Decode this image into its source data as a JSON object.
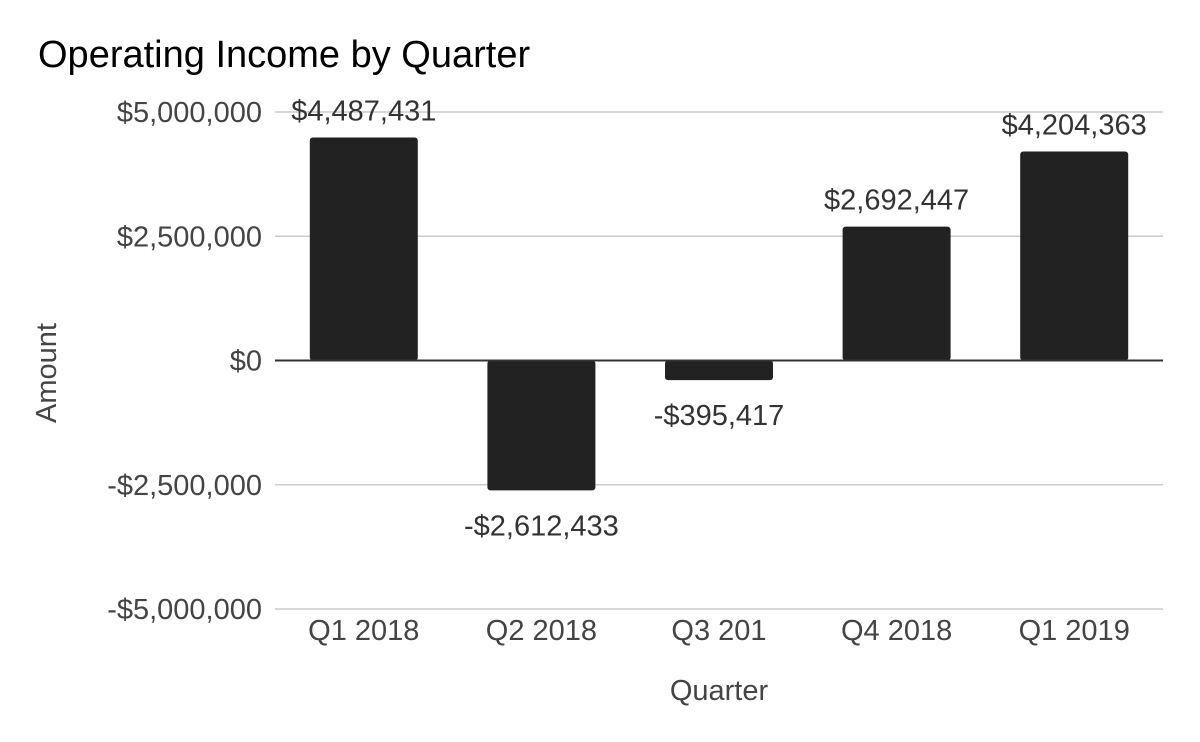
{
  "chart_data": {
    "type": "bar",
    "title": "Operating Income by Quarter",
    "xlabel": "Quarter",
    "ylabel": "Amount",
    "categories": [
      "Q1 2018",
      "Q2 2018",
      "Q3 201",
      "Q4 2018",
      "Q1 2019"
    ],
    "values": [
      4487431,
      -2612433,
      -395417,
      2692447,
      4204363
    ],
    "data_labels": [
      "$4,487,431",
      "-$2,612,433",
      "-$395,417",
      "$2,692,447",
      "$4,204,363"
    ],
    "ylim": [
      -5000000,
      5000000
    ],
    "yticks": [
      5000000,
      2500000,
      0,
      -2500000,
      -5000000
    ],
    "ytick_labels": [
      "$5,000,000",
      "$2,500,000",
      "$0",
      "-$2,500,000",
      "-$5,000,000"
    ],
    "grid": true,
    "legend": "none",
    "colors": {
      "bar": "#222222",
      "grid": "#cccccc",
      "zero_line": "#333333"
    }
  }
}
